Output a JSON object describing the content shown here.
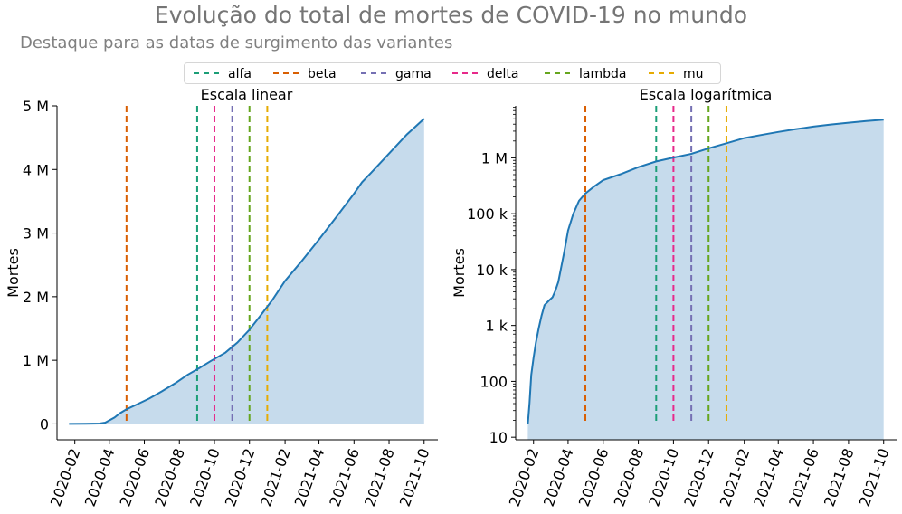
{
  "title": "Evolução do total de mortes de COVID-19 no mundo",
  "subtitle": "Destaque para as datas de surgimento das variantes",
  "legend": [
    {
      "name": "alfa",
      "color": "#1b9e77"
    },
    {
      "name": "beta",
      "color": "#d95f02"
    },
    {
      "name": "gama",
      "color": "#7570b3"
    },
    {
      "name": "delta",
      "color": "#e7298a"
    },
    {
      "name": "lambda",
      "color": "#66a61e"
    },
    {
      "name": "mu",
      "color": "#e6ab02"
    }
  ],
  "colors": {
    "line": "#1f77b4",
    "fill": "#c6dbec"
  },
  "chart_data": [
    {
      "type": "area",
      "title": "Escala linear",
      "ylabel": "Mortes",
      "yscale": "linear",
      "xlim": [
        "2020-01-01",
        "2021-10-25"
      ],
      "ylim": [
        -250000,
        5000000
      ],
      "yticks": [
        0,
        1000000,
        2000000,
        3000000,
        4000000,
        5000000
      ],
      "ytick_labels": [
        "0",
        "1 M",
        "2 M",
        "3 M",
        "4 M",
        "5 M"
      ],
      "xticks": [
        "2020-02-01",
        "2020-04-01",
        "2020-06-01",
        "2020-08-01",
        "2020-10-01",
        "2020-12-01",
        "2021-02-01",
        "2021-04-01",
        "2021-06-01",
        "2021-08-01",
        "2021-10-01"
      ],
      "xtick_labels": [
        "2020-02",
        "2020-04",
        "2020-06",
        "2020-08",
        "2020-10",
        "2020-12",
        "2021-02",
        "2021-04",
        "2021-06",
        "2021-08",
        "2021-10"
      ],
      "x": [
        "2020-01-22",
        "2020-02-20",
        "2020-03-15",
        "2020-03-25",
        "2020-04-10",
        "2020-04-20",
        "2020-05-01",
        "2020-05-20",
        "2020-06-10",
        "2020-07-01",
        "2020-07-25",
        "2020-08-15",
        "2020-09-05",
        "2020-09-25",
        "2020-10-20",
        "2020-11-10",
        "2020-12-01",
        "2020-12-20",
        "2021-01-10",
        "2021-02-01",
        "2021-03-01",
        "2021-04-01",
        "2021-05-01",
        "2021-06-01",
        "2021-06-15",
        "2021-07-01",
        "2021-08-01",
        "2021-09-01",
        "2021-10-01"
      ],
      "y": [
        17,
        2300,
        6000,
        20000,
        100000,
        170000,
        230000,
        310000,
        400000,
        510000,
        640000,
        770000,
        880000,
        990000,
        1120000,
        1280000,
        1480000,
        1700000,
        1950000,
        2250000,
        2550000,
        2900000,
        3250000,
        3620000,
        3800000,
        3950000,
        4250000,
        4550000,
        4800000
      ],
      "variants": [
        {
          "name": "beta",
          "date": "2020-05-01"
        },
        {
          "name": "alfa",
          "date": "2020-09-01"
        },
        {
          "name": "delta",
          "date": "2020-10-01"
        },
        {
          "name": "gama",
          "date": "2020-11-01"
        },
        {
          "name": "lambda",
          "date": "2020-12-01"
        },
        {
          "name": "mu",
          "date": "2021-01-01"
        }
      ]
    },
    {
      "type": "area",
      "title": "Escala logarítmica",
      "ylabel": "Mortes",
      "yscale": "log",
      "xlim": [
        "2020-01-01",
        "2021-10-25"
      ],
      "ylim": [
        9,
        8500000
      ],
      "yticks": [
        10,
        100,
        1000,
        10000,
        100000,
        1000000
      ],
      "ytick_labels": [
        "10",
        "100",
        "1 k",
        "10 k",
        "100 k",
        "1 M"
      ],
      "xticks": [
        "2020-02-01",
        "2020-04-01",
        "2020-06-01",
        "2020-08-01",
        "2020-10-01",
        "2020-12-01",
        "2021-02-01",
        "2021-04-01",
        "2021-06-01",
        "2021-08-01",
        "2021-10-01"
      ],
      "xtick_labels": [
        "2020-02",
        "2020-04",
        "2020-06",
        "2020-08",
        "2020-10",
        "2020-12",
        "2021-02",
        "2021-04",
        "2021-06",
        "2021-08",
        "2021-10"
      ],
      "x": [
        "2020-01-22",
        "2020-01-25",
        "2020-01-28",
        "2020-02-01",
        "2020-02-05",
        "2020-02-10",
        "2020-02-15",
        "2020-02-20",
        "2020-02-28",
        "2020-03-05",
        "2020-03-10",
        "2020-03-15",
        "2020-03-20",
        "2020-03-25",
        "2020-04-01",
        "2020-04-10",
        "2020-04-20",
        "2020-05-01",
        "2020-05-15",
        "2020-06-01",
        "2020-07-01",
        "2020-08-01",
        "2020-09-01",
        "2020-10-01",
        "2020-11-01",
        "2020-12-01",
        "2021-01-01",
        "2021-02-01",
        "2021-03-01",
        "2021-04-01",
        "2021-05-01",
        "2021-06-01",
        "2021-07-01",
        "2021-08-01",
        "2021-09-01",
        "2021-10-01"
      ],
      "y": [
        17,
        41,
        130,
        260,
        490,
        900,
        1500,
        2300,
        2800,
        3200,
        4200,
        6000,
        11000,
        20000,
        50000,
        100000,
        170000,
        230000,
        300000,
        400000,
        510000,
        680000,
        860000,
        1010000,
        1180000,
        1480000,
        1820000,
        2250000,
        2550000,
        2900000,
        3250000,
        3620000,
        3950000,
        4250000,
        4550000,
        4800000
      ],
      "variants": [
        {
          "name": "beta",
          "date": "2020-05-01"
        },
        {
          "name": "alfa",
          "date": "2020-09-01"
        },
        {
          "name": "delta",
          "date": "2020-10-01"
        },
        {
          "name": "gama",
          "date": "2020-11-01"
        },
        {
          "name": "lambda",
          "date": "2020-12-01"
        },
        {
          "name": "mu",
          "date": "2021-01-01"
        }
      ]
    }
  ]
}
